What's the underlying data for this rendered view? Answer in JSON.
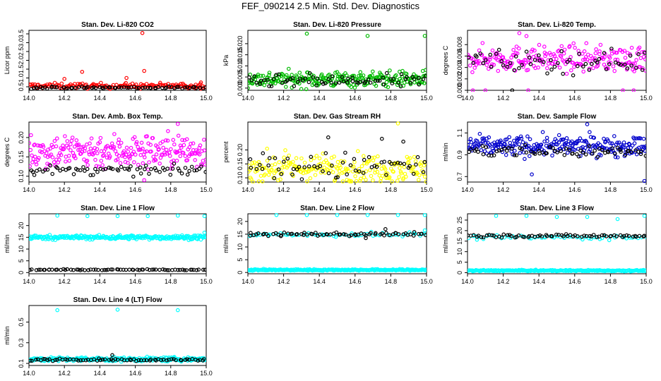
{
  "figure": {
    "title": "FEF_090214  2.5 Min. Std. Dev. Diagnostics"
  },
  "chart_data": [
    {
      "type": "scatter",
      "title": "Stan. Dev. Li-820 CO2",
      "xlabel": "",
      "ylabel": "Licor ppm",
      "xlim": [
        14.0,
        15.0
      ],
      "ylim": [
        0.3,
        3.7
      ],
      "xticks": [
        "14.0",
        "14.2",
        "14.4",
        "14.6",
        "14.8",
        "15.0"
      ],
      "yticks": [
        "0.5",
        "1.0",
        "1.5",
        "2.0",
        "2.5",
        "3.0",
        "3.5"
      ],
      "series": [
        {
          "color": "#ff0000",
          "base": 0.55,
          "spread": 0.15,
          "count": 160,
          "outliers": [
            [
              14.64,
              3.55
            ],
            [
              14.3,
              1.35
            ],
            [
              14.65,
              1.4
            ],
            [
              14.2,
              0.95
            ],
            [
              14.55,
              1.0
            ],
            [
              14.97,
              0.75
            ]
          ]
        },
        {
          "color": "#000000",
          "base": 0.45,
          "spread": 0.06,
          "count": 70,
          "outliers": []
        }
      ]
    },
    {
      "type": "scatter",
      "title": "Stan. Dev. Li-820 Pressure",
      "xlabel": "",
      "ylabel": "kPa",
      "xlim": [
        14.0,
        15.0
      ],
      "ylim": [
        -0.001,
        0.026
      ],
      "xticks": [
        "14.0",
        "14.2",
        "14.4",
        "14.6",
        "14.8",
        "15.0"
      ],
      "yticks": [
        "0.000",
        "0.005",
        "0.010",
        "0.015",
        "0.020"
      ],
      "series": [
        {
          "color": "#00bb00",
          "base": 0.004,
          "spread": 0.0035,
          "count": 260,
          "outliers": [
            [
              14.33,
              0.0245
            ],
            [
              14.67,
              0.0235
            ],
            [
              14.99,
              0.0235
            ]
          ]
        },
        {
          "color": "#000000",
          "base": 0.003,
          "spread": 0.003,
          "count": 70,
          "outliers": []
        }
      ]
    },
    {
      "type": "scatter",
      "title": "Stan. Dev. Li-820 Temp.",
      "xlabel": "",
      "ylabel": "degrees C",
      "xlim": [
        14.0,
        15.0
      ],
      "ylim": [
        0.0,
        0.0105
      ],
      "xticks": [
        "14.0",
        "14.2",
        "14.4",
        "14.6",
        "14.8",
        "15.0"
      ],
      "yticks": [
        "0.000",
        "0.002",
        "0.004",
        "0.006",
        "0.008"
      ],
      "series": [
        {
          "color": "#ff00ff",
          "base": 0.0055,
          "spread": 0.0022,
          "count": 230,
          "outliers": [
            [
              14.03,
              0.0
            ],
            [
              14.1,
              0.0
            ],
            [
              14.34,
              0.0
            ],
            [
              14.87,
              0.0
            ],
            [
              14.93,
              0.0
            ],
            [
              14.29,
              0.01
            ],
            [
              14.33,
              0.0095
            ]
          ]
        },
        {
          "color": "#000000",
          "base": 0.005,
          "spread": 0.002,
          "count": 60,
          "outliers": [
            [
              14.25,
              0.0
            ]
          ]
        }
      ]
    },
    {
      "type": "scatter",
      "title": "Stan. Dev. Amb. Box Temp.",
      "xlabel": "",
      "ylabel": "degrees C",
      "xlim": [
        14.0,
        15.0
      ],
      "ylim": [
        0.085,
        0.24
      ],
      "xticks": [
        "14.0",
        "14.2",
        "14.4",
        "14.6",
        "14.8",
        "15.0"
      ],
      "yticks": [
        "0.10",
        "0.15",
        "0.20"
      ],
      "series": [
        {
          "color": "#ff00ff",
          "base": 0.165,
          "spread": 0.045,
          "count": 260,
          "outliers": [
            [
              14.84,
              0.235
            ],
            [
              14.65,
              0.09
            ]
          ]
        },
        {
          "color": "#000000",
          "base": 0.115,
          "spread": 0.012,
          "count": 70,
          "outliers": []
        }
      ]
    },
    {
      "type": "scatter",
      "title": "Stan. Dev. Gas Stream RH",
      "xlabel": "",
      "ylabel": "percent",
      "xlim": [
        14.0,
        15.0
      ],
      "ylim": [
        0.085,
        0.3
      ],
      "xticks": [
        "14.0",
        "14.2",
        "14.4",
        "14.6",
        "14.8",
        "15.0"
      ],
      "yticks": [
        "0.10",
        "0.15",
        "0.20"
      ],
      "series": [
        {
          "color": "#ffff00",
          "base": 0.135,
          "spread": 0.05,
          "count": 230,
          "outliers": [
            [
              14.84,
              0.295
            ]
          ]
        },
        {
          "color": "#000000",
          "base": 0.14,
          "spread": 0.05,
          "count": 60,
          "outliers": [
            [
              14.45,
              0.245
            ],
            [
              14.75,
              0.24
            ],
            [
              14.87,
              0.23
            ]
          ]
        }
      ]
    },
    {
      "type": "scatter",
      "title": "Stan. Dev. Sample Flow",
      "xlabel": "",
      "ylabel": "ml/min",
      "xlim": [
        14.0,
        15.0
      ],
      "ylim": [
        0.65,
        1.2
      ],
      "xticks": [
        "14.0",
        "14.2",
        "14.4",
        "14.6",
        "14.8",
        "15.0"
      ],
      "yticks": [
        "0.7",
        "0.9",
        "1.1"
      ],
      "series": [
        {
          "color": "#0000cc",
          "base": 0.98,
          "spread": 0.09,
          "count": 260,
          "outliers": [
            [
              14.67,
              1.18
            ],
            [
              14.99,
              0.66
            ],
            [
              14.36,
              0.72
            ]
          ]
        },
        {
          "color": "#000000",
          "base": 0.93,
          "spread": 0.06,
          "count": 70,
          "outliers": []
        }
      ]
    },
    {
      "type": "scatter",
      "title": "Stan. Dev. Line 1 Flow",
      "xlabel": "",
      "ylabel": "ml/min",
      "xlim": [
        14.0,
        15.0
      ],
      "ylim": [
        -0.5,
        25
      ],
      "xticks": [
        "14.0",
        "14.2",
        "14.4",
        "14.6",
        "14.8",
        "15.0"
      ],
      "yticks": [
        "0",
        "5",
        "10",
        "15",
        "20"
      ],
      "series": [
        {
          "color": "#00ffff",
          "base": 15.0,
          "spread": 0.9,
          "count": 260,
          "outliers": [
            [
              14.16,
              24.2
            ],
            [
              14.33,
              24.0
            ],
            [
              14.5,
              24.0
            ],
            [
              14.67,
              24.0
            ],
            [
              14.84,
              24.2
            ],
            [
              14.99,
              24.0
            ],
            [
              14.99,
              17.0
            ]
          ]
        },
        {
          "color": "#000000",
          "base": 1.2,
          "spread": 0.2,
          "count": 70,
          "outliers": []
        }
      ]
    },
    {
      "type": "scatter",
      "title": "Stan. Dev. Line 2 Flow",
      "xlabel": "",
      "ylabel": "ml/min",
      "xlim": [
        14.0,
        15.0
      ],
      "ylim": [
        -0.5,
        23
      ],
      "xticks": [
        "14.0",
        "14.2",
        "14.4",
        "14.6",
        "14.8",
        "15.0"
      ],
      "yticks": [
        "0",
        "5",
        "10",
        "15",
        "20"
      ],
      "series": [
        {
          "color": "#00ffff",
          "base": 1.0,
          "spread": 0.3,
          "count": 260,
          "outliers": [
            [
              14.16,
              22.5
            ],
            [
              14.33,
              22.5
            ],
            [
              14.5,
              22.5
            ],
            [
              14.67,
              22.5
            ],
            [
              14.84,
              22.5
            ],
            [
              14.99,
              22.5
            ],
            [
              14.99,
              16.5
            ]
          ]
        },
        {
          "color": "#00ffff",
          "base": 14.8,
          "spread": 0.9,
          "count": 60,
          "outliers": []
        },
        {
          "color": "#000000",
          "base": 15.0,
          "spread": 0.7,
          "count": 70,
          "outliers": [
            [
              14.77,
              17.0
            ],
            [
              14.66,
              13.5
            ]
          ]
        }
      ]
    },
    {
      "type": "scatter",
      "title": "Stan. Dev. Line 3 Flow",
      "xlabel": "",
      "ylabel": "ml/min",
      "xlim": [
        14.0,
        15.0
      ],
      "ylim": [
        -0.5,
        28
      ],
      "xticks": [
        "14.0",
        "14.2",
        "14.4",
        "14.6",
        "14.8",
        "15.0"
      ],
      "yticks": [
        "0",
        "5",
        "10",
        "15",
        "20",
        "25"
      ],
      "series": [
        {
          "color": "#00ffff",
          "base": 1.0,
          "spread": 0.3,
          "count": 260,
          "outliers": [
            [
              14.16,
              27.0
            ],
            [
              14.33,
              27.0
            ],
            [
              14.5,
              26.5
            ],
            [
              14.67,
              26.5
            ],
            [
              14.84,
              25.5
            ],
            [
              14.99,
              27.0
            ]
          ]
        },
        {
          "color": "#00ffff",
          "base": 16.8,
          "spread": 1.0,
          "count": 60,
          "outliers": []
        },
        {
          "color": "#000000",
          "base": 17.5,
          "spread": 0.7,
          "count": 70,
          "outliers": []
        }
      ]
    },
    {
      "type": "scatter",
      "title": "Stan. Dev. Line 4 (LT) Flow",
      "xlabel": "",
      "ylabel": "ml/min",
      "xlim": [
        14.0,
        15.0
      ],
      "ylim": [
        0.08,
        0.66
      ],
      "xticks": [
        "14.0",
        "14.2",
        "14.4",
        "14.6",
        "14.8",
        "15.0"
      ],
      "yticks": [
        "0.1",
        "0.3",
        "0.5"
      ],
      "series": [
        {
          "color": "#00ffff",
          "base": 0.14,
          "spread": 0.02,
          "count": 260,
          "outliers": [
            [
              14.16,
              0.615
            ],
            [
              14.5,
              0.62
            ],
            [
              14.84,
              0.615
            ]
          ]
        },
        {
          "color": "#000000",
          "base": 0.135,
          "spread": 0.012,
          "count": 70,
          "outliers": [
            [
              14.47,
              0.18
            ]
          ]
        }
      ]
    }
  ]
}
